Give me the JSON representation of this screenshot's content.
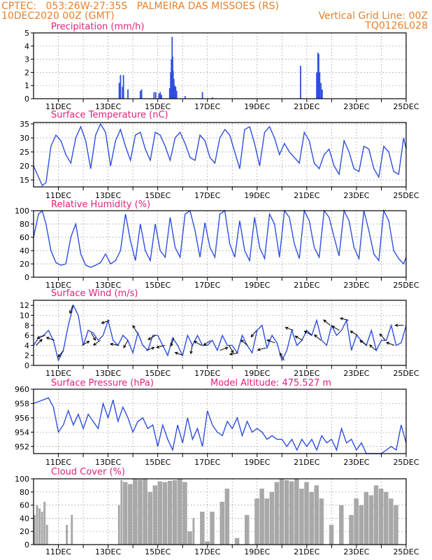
{
  "header": {
    "line1_left": "CPTEC:   053:26W-27:35S   PALMEIRA DAS MISSOES (RS)",
    "line2_left": "10DEC2020 00Z (GMT)",
    "line2_right": "Vertical Grid Line: 00Z",
    "line3_right": "TQ0126L028"
  },
  "colors": {
    "header": "#e8802a",
    "title": "#e0207a",
    "series": "#2f4ee0",
    "bar": "#2f4ee0",
    "cloud": "#a8a8a8",
    "grid": "#888888"
  },
  "x_axis": {
    "start_day": 10,
    "end_day": 25,
    "tick_labels": [
      "11DEC",
      "13DEC",
      "15DEC",
      "17DEC",
      "19DEC",
      "21DEC",
      "23DEC",
      "25DEC"
    ]
  },
  "chart_data": [
    {
      "type": "bar",
      "title": "Precipitation (mm/h)",
      "ylim": [
        0,
        5
      ],
      "yticks": [
        0,
        1,
        2,
        3,
        4,
        5
      ],
      "bars": [
        [
          13.45,
          1.2
        ],
        [
          13.5,
          1.8
        ],
        [
          13.58,
          0.9
        ],
        [
          13.62,
          1.8
        ],
        [
          13.8,
          0.7
        ],
        [
          14.3,
          0.6
        ],
        [
          14.35,
          0.7
        ],
        [
          14.85,
          0.5
        ],
        [
          14.92,
          0.5
        ],
        [
          15.05,
          0.4
        ],
        [
          15.1,
          0.5
        ],
        [
          15.15,
          0.3
        ],
        [
          15.48,
          0.8
        ],
        [
          15.52,
          2.0
        ],
        [
          15.55,
          3.0
        ],
        [
          15.58,
          4.7
        ],
        [
          15.6,
          3.2
        ],
        [
          15.62,
          2.1
        ],
        [
          15.65,
          1.5
        ],
        [
          15.68,
          1.0
        ],
        [
          15.72,
          0.9
        ],
        [
          15.76,
          0.6
        ],
        [
          16.1,
          0.2
        ],
        [
          16.8,
          0.5
        ],
        [
          17.2,
          0.1
        ],
        [
          20.75,
          2.5
        ],
        [
          21.4,
          2.0
        ],
        [
          21.45,
          3.5
        ],
        [
          21.48,
          3.4
        ],
        [
          21.52,
          2.0
        ],
        [
          21.57,
          1.2
        ],
        [
          21.62,
          0.7
        ]
      ]
    },
    {
      "type": "line",
      "title": "Surface Temperature (nC)",
      "ylim": [
        12.5,
        35.5
      ],
      "yticks": [
        15,
        20,
        25,
        30,
        35
      ],
      "x": [
        10,
        10.2,
        10.35,
        10.5,
        10.7,
        10.9,
        11.1,
        11.3,
        11.5,
        11.7,
        11.9,
        12.1,
        12.3,
        12.5,
        12.7,
        12.9,
        13.1,
        13.3,
        13.5,
        13.7,
        13.9,
        14.1,
        14.3,
        14.5,
        14.7,
        14.9,
        15.1,
        15.3,
        15.5,
        15.7,
        15.9,
        16.1,
        16.3,
        16.5,
        16.7,
        16.9,
        17.1,
        17.3,
        17.5,
        17.7,
        17.9,
        18.1,
        18.3,
        18.5,
        18.7,
        18.9,
        19.1,
        19.3,
        19.5,
        19.7,
        19.9,
        20.1,
        20.3,
        20.5,
        20.7,
        20.9,
        21.1,
        21.3,
        21.5,
        21.7,
        21.9,
        22.1,
        22.3,
        22.5,
        22.7,
        22.9,
        23.1,
        23.3,
        23.5,
        23.7,
        23.9,
        24.1,
        24.3,
        24.5,
        24.7,
        24.9,
        25
      ],
      "y": [
        20,
        16,
        13,
        14,
        27,
        31,
        29,
        24,
        21,
        30,
        34,
        29,
        19,
        31,
        35,
        32,
        20,
        29,
        33,
        27,
        22,
        31,
        32,
        26,
        22,
        32,
        31,
        27,
        22,
        30,
        32,
        28,
        23,
        22,
        31,
        29,
        23,
        21,
        30,
        33,
        31,
        25,
        19,
        33,
        34,
        28,
        20,
        32,
        34,
        30,
        24,
        28,
        25,
        23,
        21,
        32,
        29,
        21,
        19,
        24,
        26,
        20,
        17,
        29,
        25,
        19,
        18,
        27,
        26,
        19,
        16,
        27,
        25,
        18,
        17,
        30,
        26
      ]
    },
    {
      "type": "line",
      "title": "Relative Humidity (%)",
      "ylim": [
        0,
        100
      ],
      "yticks": [
        0,
        20,
        40,
        60,
        80,
        100
      ],
      "x": [
        10,
        10.2,
        10.35,
        10.5,
        10.7,
        10.9,
        11.1,
        11.3,
        11.5,
        11.7,
        11.9,
        12.1,
        12.3,
        12.5,
        12.7,
        12.9,
        13.1,
        13.3,
        13.5,
        13.7,
        13.9,
        14.1,
        14.3,
        14.5,
        14.7,
        14.9,
        15.1,
        15.3,
        15.5,
        15.7,
        15.9,
        16.1,
        16.3,
        16.5,
        16.7,
        16.9,
        17.1,
        17.3,
        17.5,
        17.7,
        17.9,
        18.1,
        18.3,
        18.5,
        18.7,
        18.9,
        19.1,
        19.3,
        19.5,
        19.7,
        19.9,
        20.1,
        20.3,
        20.5,
        20.7,
        20.9,
        21.1,
        21.3,
        21.5,
        21.7,
        21.9,
        22.1,
        22.3,
        22.5,
        22.7,
        22.9,
        23.1,
        23.3,
        23.5,
        23.7,
        23.9,
        24.1,
        24.3,
        24.5,
        24.7,
        24.9,
        25
      ],
      "y": [
        60,
        95,
        100,
        80,
        40,
        22,
        18,
        20,
        60,
        80,
        35,
        18,
        15,
        18,
        22,
        35,
        20,
        25,
        40,
        95,
        55,
        25,
        80,
        40,
        25,
        80,
        40,
        30,
        90,
        45,
        30,
        95,
        100,
        70,
        30,
        82,
        45,
        30,
        95,
        100,
        50,
        30,
        85,
        40,
        25,
        90,
        45,
        28,
        95,
        80,
        30,
        100,
        90,
        50,
        28,
        100,
        85,
        45,
        30,
        100,
        90,
        60,
        32,
        100,
        85,
        45,
        28,
        100,
        70,
        35,
        25,
        100,
        85,
        40,
        28,
        20,
        30
      ]
    },
    {
      "type": "line",
      "title": "Surface Wind (m/s)",
      "ylim": [
        0,
        13
      ],
      "yticks": [
        0,
        2,
        4,
        6,
        8,
        10,
        12
      ],
      "x": [
        10,
        10.2,
        10.4,
        10.6,
        10.8,
        11,
        11.2,
        11.4,
        11.6,
        11.8,
        12,
        12.2,
        12.4,
        12.6,
        12.8,
        13,
        13.2,
        13.4,
        13.6,
        13.8,
        14,
        14.2,
        14.4,
        14.6,
        14.8,
        15,
        15.2,
        15.4,
        15.6,
        15.8,
        16,
        16.2,
        16.4,
        16.6,
        16.8,
        17,
        17.2,
        17.4,
        17.6,
        17.8,
        18,
        18.2,
        18.4,
        18.6,
        18.8,
        19,
        19.2,
        19.4,
        19.6,
        19.8,
        20,
        20.2,
        20.4,
        20.6,
        20.8,
        21,
        21.2,
        21.4,
        21.6,
        21.8,
        22,
        22.2,
        22.4,
        22.6,
        22.8,
        23,
        23.2,
        23.4,
        23.6,
        23.8,
        24,
        24.2,
        24.4,
        24.6,
        24.8,
        25
      ],
      "y": [
        4,
        5.5,
        6,
        7,
        5,
        1,
        3,
        8,
        12,
        10,
        4,
        7,
        6.5,
        5,
        6,
        9,
        5,
        4,
        6,
        5,
        2.5,
        6.5,
        4,
        3,
        6,
        6,
        4,
        2,
        5.5,
        4,
        2,
        6,
        4,
        6,
        4,
        4,
        5,
        3,
        6,
        4,
        4,
        2.5,
        6,
        4,
        2.5,
        7,
        8,
        3.5,
        6,
        4.5,
        1,
        3,
        7,
        4,
        5,
        7,
        6,
        9,
        5,
        4,
        8,
        6,
        7,
        9,
        3,
        6,
        5,
        4,
        7,
        3,
        5,
        5,
        8,
        4,
        4.5,
        8
      ]
    },
    {
      "type": "line",
      "title": "Surface Pressure (hPa)",
      "annotation": "Model Altitude: 475.527 m",
      "ylim": [
        951,
        960
      ],
      "yticks": [
        952,
        954,
        956,
        958,
        960
      ],
      "x": [
        10,
        10.3,
        10.6,
        10.8,
        11,
        11.2,
        11.4,
        11.6,
        11.8,
        12,
        12.2,
        12.4,
        12.6,
        12.8,
        13,
        13.2,
        13.4,
        13.6,
        13.8,
        14,
        14.2,
        14.4,
        14.6,
        14.8,
        15,
        15.2,
        15.4,
        15.6,
        15.8,
        16,
        16.2,
        16.4,
        16.6,
        16.8,
        17,
        17.2,
        17.4,
        17.6,
        17.8,
        18,
        18.2,
        18.4,
        18.6,
        18.8,
        19,
        19.2,
        19.4,
        19.6,
        19.8,
        20,
        20.2,
        20.4,
        20.6,
        20.8,
        21,
        21.2,
        21.4,
        21.6,
        21.8,
        22,
        22.2,
        22.4,
        22.6,
        22.8,
        23,
        23.2,
        23.4,
        23.6,
        23.8,
        24,
        24.2,
        24.4,
        24.6,
        24.8,
        25
      ],
      "y": [
        958,
        958.4,
        958.8,
        957.5,
        954,
        955,
        957,
        955,
        956.5,
        954.5,
        956.5,
        955.5,
        954.5,
        958,
        956,
        958.5,
        955.5,
        957.5,
        956,
        954,
        955.5,
        956,
        954.5,
        955,
        952,
        955,
        953,
        951.5,
        955,
        952.5,
        956,
        953,
        954.5,
        952,
        957,
        955,
        954,
        953.5,
        955.5,
        954.5,
        956,
        953.5,
        955.5,
        954,
        954.5,
        954,
        953,
        953.5,
        953,
        953,
        952,
        953,
        951.5,
        953,
        952,
        953,
        951.5,
        953.5,
        952.5,
        953,
        951.5,
        954.5,
        952.5,
        953,
        951.5,
        952.5,
        951,
        951,
        951,
        951,
        951.5,
        952,
        951.5,
        955,
        952.5
      ]
    },
    {
      "type": "area",
      "title": "Cloud Cover (%)",
      "ylim": [
        0,
        100
      ],
      "yticks": [
        0,
        20,
        40,
        60,
        80,
        100
      ],
      "x": [
        10,
        10.1,
        10.2,
        10.3,
        10.4,
        10.5,
        10.6,
        10.7,
        10.8,
        11.0,
        11.2,
        11.3,
        11.4,
        11.5,
        11.6,
        11.7,
        11.8,
        12.0,
        12.2,
        12.4,
        12.6,
        12.8,
        13.0,
        13.2,
        13.4,
        13.5,
        13.6,
        13.8,
        14.0,
        14.2,
        14.4,
        14.6,
        14.8,
        15.0,
        15.2,
        15.4,
        15.6,
        15.8,
        16.0,
        16.2,
        16.4,
        16.5,
        16.7,
        16.9,
        17.1,
        17.3,
        17.5,
        17.7,
        17.9,
        18.1,
        18.3,
        18.5,
        18.7,
        18.9,
        19.1,
        19.3,
        19.5,
        19.7,
        19.9,
        20.1,
        20.3,
        20.5,
        20.7,
        20.9,
        21.1,
        21.3,
        21.5,
        21.7,
        21.9,
        22.1,
        22.3,
        22.5,
        22.7,
        22.9,
        23.1,
        23.3,
        23.5,
        23.7,
        23.9,
        24.1,
        24.3,
        24.5,
        24.7,
        24.9,
        25
      ],
      "y": [
        45,
        60,
        55,
        50,
        65,
        30,
        0,
        0,
        0,
        0,
        0,
        30,
        0,
        45,
        0,
        0,
        0,
        0,
        0,
        0,
        0,
        0,
        0,
        0,
        60,
        98,
        95,
        92,
        100,
        99,
        100,
        80,
        90,
        96,
        95,
        97,
        98,
        100,
        95,
        20,
        40,
        0,
        50,
        5,
        50,
        0,
        65,
        85,
        0,
        10,
        0,
        45,
        0,
        70,
        85,
        70,
        80,
        95,
        100,
        98,
        96,
        100,
        85,
        95,
        80,
        90,
        70,
        0,
        30,
        0,
        60,
        0,
        45,
        70,
        60,
        80,
        75,
        90,
        85,
        80,
        70,
        60,
        0,
        0,
        0
      ]
    }
  ]
}
